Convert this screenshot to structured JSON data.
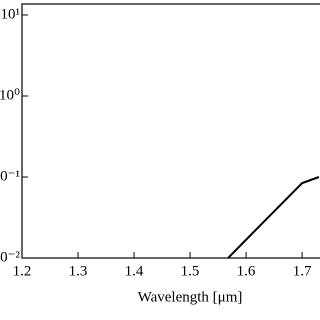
{
  "chart_data": {
    "type": "line",
    "xlabel": "Wavelength [μm]",
    "x": [
      1.568,
      1.6,
      1.65,
      1.7,
      1.73
    ],
    "series": [
      {
        "color": "#000000",
        "values": [
          0.01,
          0.0168,
          0.0376,
          0.084,
          0.1
        ]
      }
    ],
    "xlim": [
      1.2,
      1.732
    ],
    "xticks": [
      1.2,
      1.3,
      1.4,
      1.5,
      1.6,
      1.7
    ],
    "ylim": [
      0.01,
      10
    ],
    "yscale": "log",
    "yticks": [
      {
        "value": 10,
        "label": "10¹"
      },
      {
        "value": 1,
        "label": "10⁰"
      },
      {
        "value": 0.1,
        "label": "10⁻¹"
      },
      {
        "value": 0.01,
        "label": "10⁻²"
      }
    ]
  }
}
